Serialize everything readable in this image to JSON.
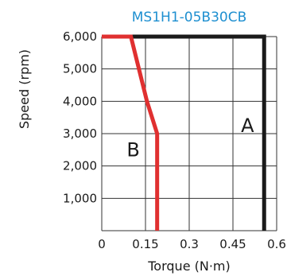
{
  "chart_data": {
    "type": "line",
    "title": "MS1H1-05B30CB",
    "xlabel": "Torque (N·m)",
    "ylabel": "Speed (rpm)",
    "xlim": [
      0,
      0.6
    ],
    "ylim": [
      0,
      6000
    ],
    "x_ticks": [
      "0",
      "0.15",
      "0.3",
      "0.45",
      "0.6"
    ],
    "x_tick_values": [
      0,
      0.15,
      0.3,
      0.45,
      0.6
    ],
    "y_ticks": [
      "1,000",
      "2,000",
      "3,000",
      "4,000",
      "5,000",
      "6,000"
    ],
    "y_tick_values": [
      1000,
      2000,
      3000,
      4000,
      5000,
      6000
    ],
    "grid": true,
    "series": [
      {
        "name": "A",
        "color": "#1a1a1a",
        "x": [
          0,
          0.557,
          0.557
        ],
        "y": [
          6000,
          6000,
          0
        ]
      },
      {
        "name": "B",
        "color": "#e03030",
        "x": [
          0,
          0.1,
          0.155,
          0.19,
          0.19
        ],
        "y": [
          6000,
          6000,
          4000,
          3000,
          0
        ]
      }
    ],
    "title_color": "#1e8fd0"
  }
}
